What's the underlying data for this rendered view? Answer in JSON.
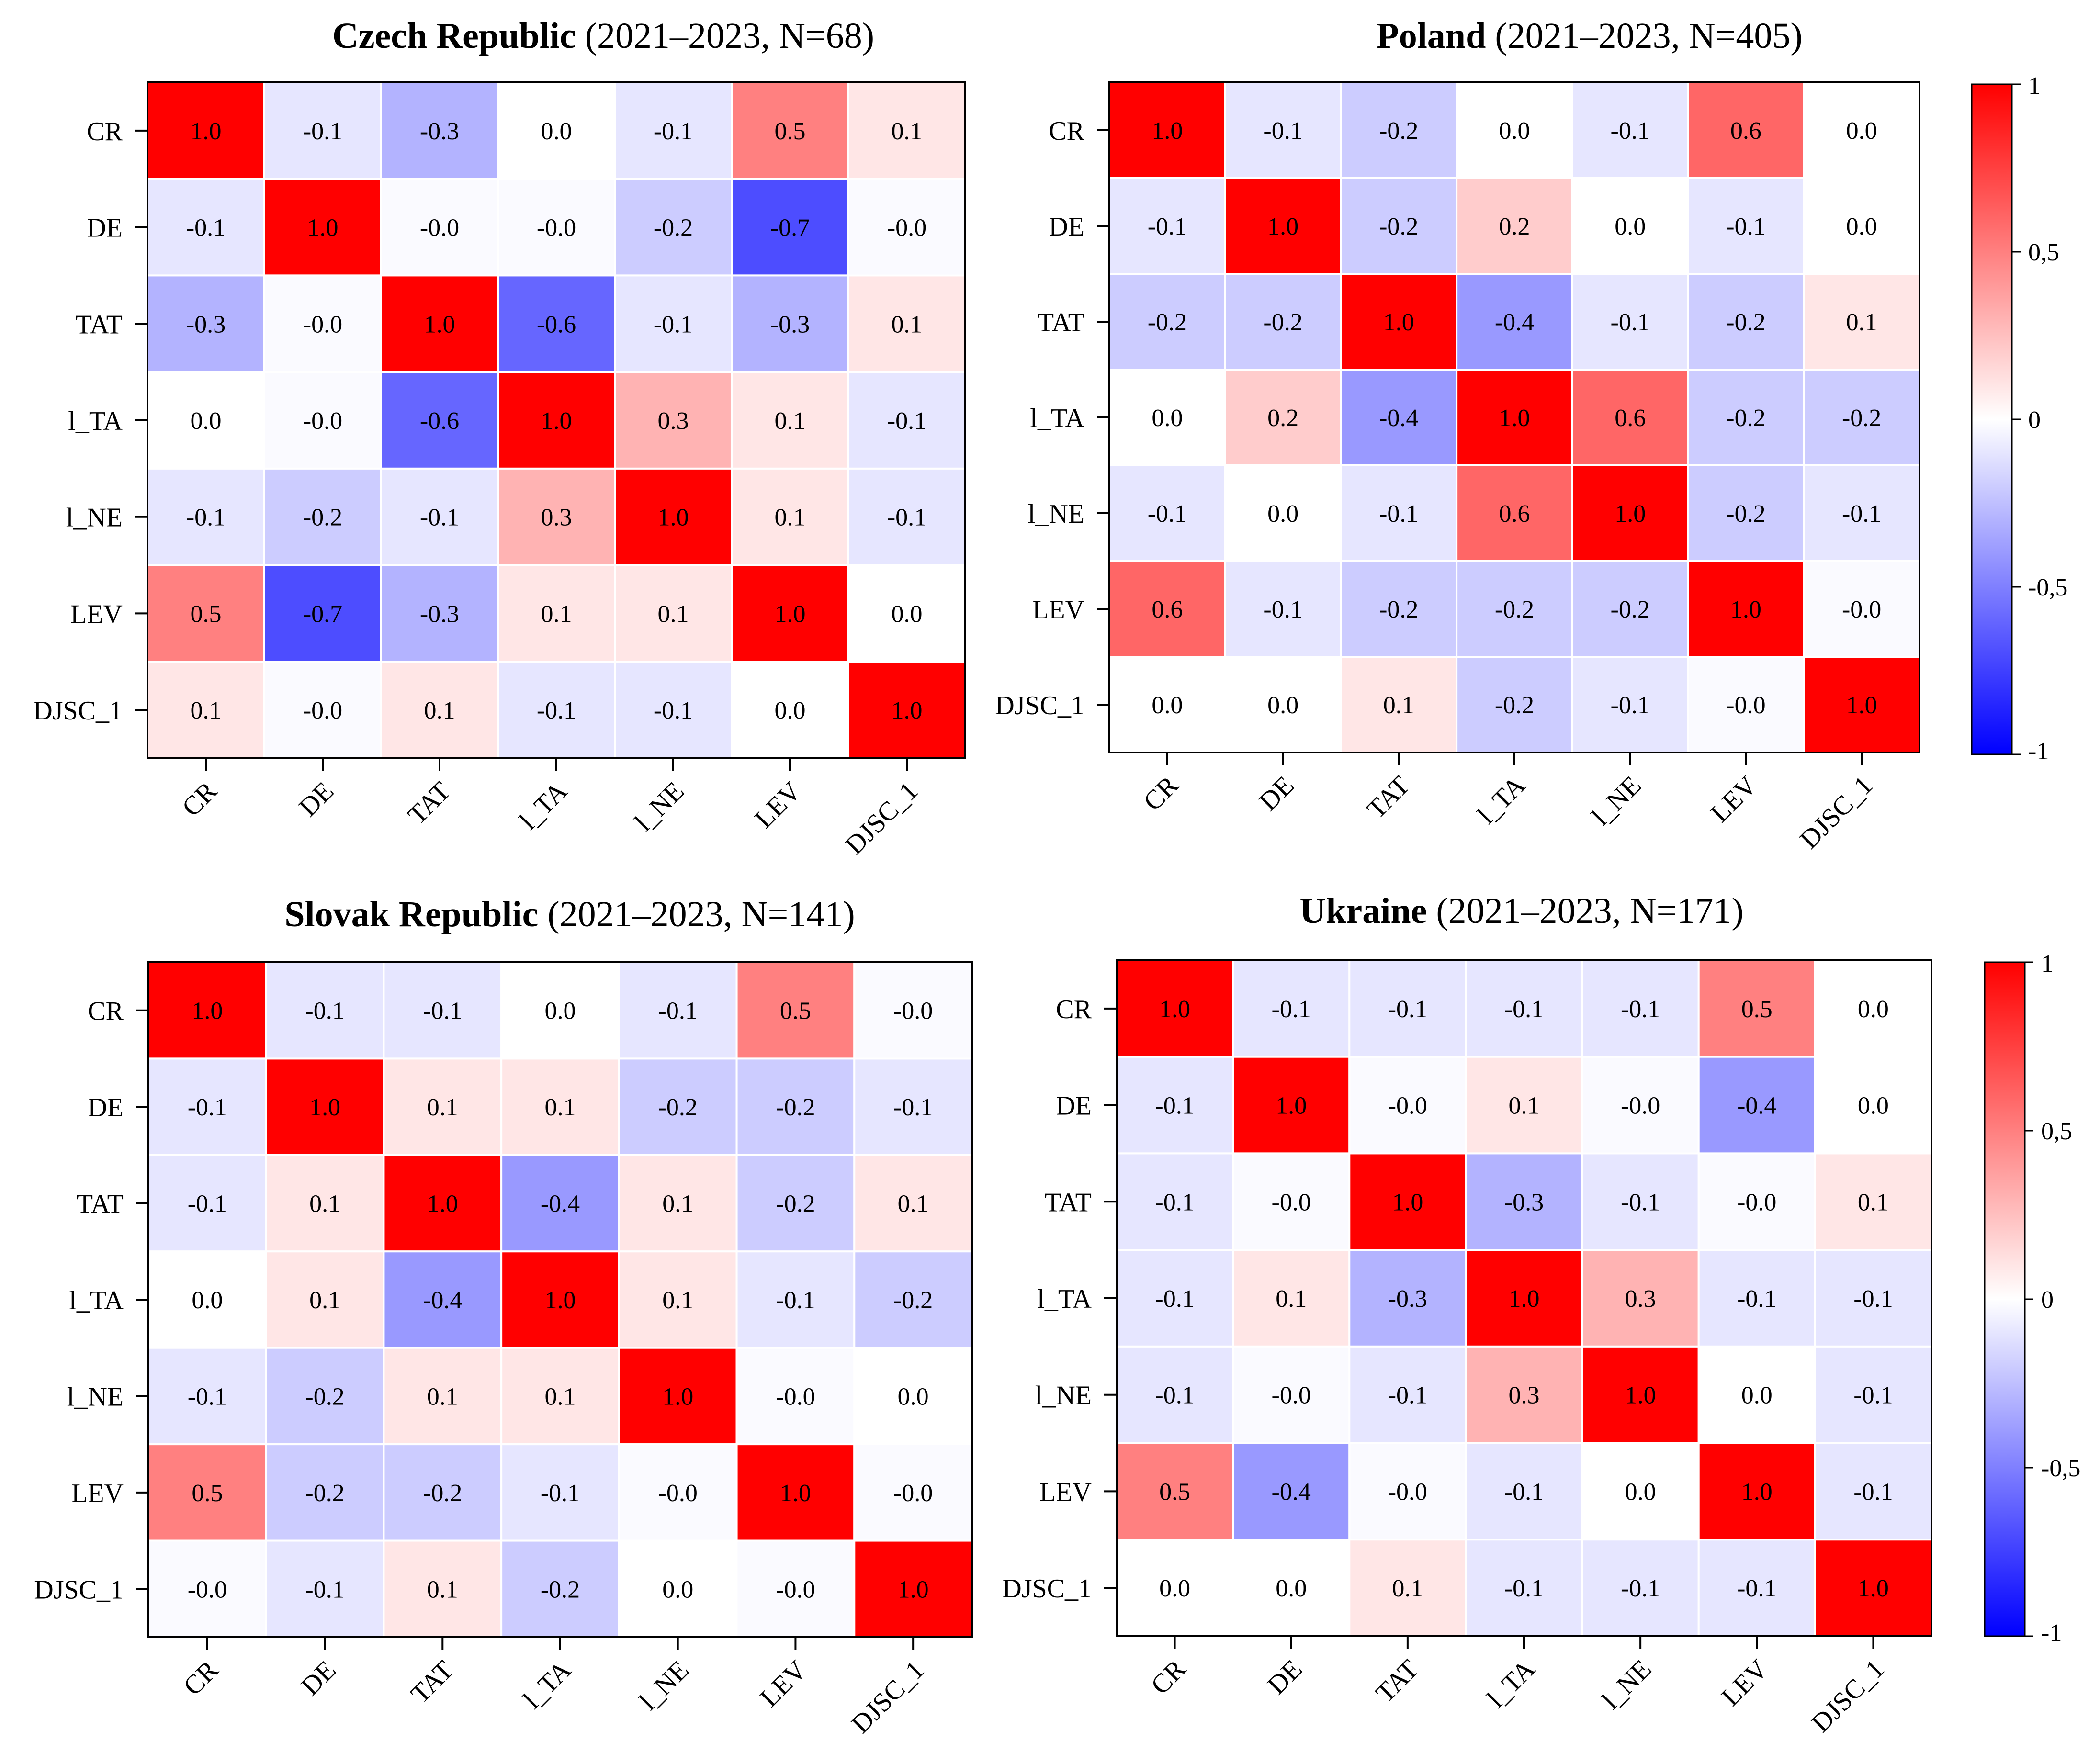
{
  "chart_data": [
    {
      "type": "heatmap",
      "title_country": "Czech Republic",
      "title_suffix": " (2021–2023, N=68)",
      "row_labels": [
        "CR",
        "DE",
        "TAT",
        "l_TA",
        "l_NE",
        "LEV",
        "DJSC_1"
      ],
      "col_labels": [
        "CR",
        "DE",
        "TAT",
        "l_TA",
        "l_NE",
        "LEV",
        "DJSC_1"
      ],
      "values": [
        [
          1.0,
          -0.1,
          -0.3,
          0.0,
          -0.1,
          0.5,
          0.1
        ],
        [
          -0.1,
          1.0,
          -0.02,
          -0.02,
          -0.2,
          -0.7,
          -0.02
        ],
        [
          -0.3,
          -0.02,
          1.0,
          -0.6,
          -0.1,
          -0.3,
          0.1
        ],
        [
          0.0,
          -0.02,
          -0.6,
          1.0,
          0.3,
          0.1,
          -0.1
        ],
        [
          -0.1,
          -0.2,
          -0.1,
          0.3,
          1.0,
          0.1,
          -0.1
        ],
        [
          0.5,
          -0.7,
          -0.3,
          0.1,
          0.1,
          1.0,
          0.0
        ],
        [
          0.1,
          -0.02,
          0.1,
          -0.1,
          -0.1,
          0.0,
          1.0
        ]
      ],
      "labels": [
        [
          "1.0",
          "-0.1",
          "-0.3",
          "0.0",
          "-0.1",
          "0.5",
          "0.1"
        ],
        [
          "-0.1",
          "1.0",
          "-0.0",
          "-0.0",
          "-0.2",
          "-0.7",
          "-0.0"
        ],
        [
          "-0.3",
          "-0.0",
          "1.0",
          "-0.6",
          "-0.1",
          "-0.3",
          "0.1"
        ],
        [
          "0.0",
          "-0.0",
          "-0.6",
          "1.0",
          "0.3",
          "0.1",
          "-0.1"
        ],
        [
          "-0.1",
          "-0.2",
          "-0.1",
          "0.3",
          "1.0",
          "0.1",
          "-0.1"
        ],
        [
          "0.5",
          "-0.7",
          "-0.3",
          "0.1",
          "0.1",
          "1.0",
          "0.0"
        ],
        [
          "0.1",
          "-0.0",
          "0.1",
          "-0.1",
          "-0.1",
          "0.0",
          "1.0"
        ]
      ],
      "colorbar": false
    },
    {
      "type": "heatmap",
      "title_country": "Poland",
      "title_suffix": " (2021–2023, N=405)",
      "row_labels": [
        "CR",
        "DE",
        "TAT",
        "l_TA",
        "l_NE",
        "LEV",
        "DJSC_1"
      ],
      "col_labels": [
        "CR",
        "DE",
        "TAT",
        "l_TA",
        "l_NE",
        "LEV",
        "DJSC_1"
      ],
      "values": [
        [
          1.0,
          -0.1,
          -0.2,
          0.0,
          -0.1,
          0.6,
          0.0
        ],
        [
          -0.1,
          1.0,
          -0.2,
          0.2,
          0.0,
          -0.1,
          0.0
        ],
        [
          -0.2,
          -0.2,
          1.0,
          -0.4,
          -0.1,
          -0.2,
          0.1
        ],
        [
          0.0,
          0.2,
          -0.4,
          1.0,
          0.6,
          -0.2,
          -0.2
        ],
        [
          -0.1,
          0.0,
          -0.1,
          0.6,
          1.0,
          -0.2,
          -0.1
        ],
        [
          0.6,
          -0.1,
          -0.2,
          -0.2,
          -0.2,
          1.0,
          -0.02
        ],
        [
          0.0,
          0.0,
          0.1,
          -0.2,
          -0.1,
          -0.02,
          1.0
        ]
      ],
      "labels": [
        [
          "1.0",
          "-0.1",
          "-0.2",
          "0.0",
          "-0.1",
          "0.6",
          "0.0"
        ],
        [
          "-0.1",
          "1.0",
          "-0.2",
          "0.2",
          "0.0",
          "-0.1",
          "0.0"
        ],
        [
          "-0.2",
          "-0.2",
          "1.0",
          "-0.4",
          "-0.1",
          "-0.2",
          "0.1"
        ],
        [
          "0.0",
          "0.2",
          "-0.4",
          "1.0",
          "0.6",
          "-0.2",
          "-0.2"
        ],
        [
          "-0.1",
          "0.0",
          "-0.1",
          "0.6",
          "1.0",
          "-0.2",
          "-0.1"
        ],
        [
          "0.6",
          "-0.1",
          "-0.2",
          "-0.2",
          "-0.2",
          "1.0",
          "-0.0"
        ],
        [
          "0.0",
          "0.0",
          "0.1",
          "-0.2",
          "-0.1",
          "-0.0",
          "1.0"
        ]
      ],
      "colorbar": true
    },
    {
      "type": "heatmap",
      "title_country": "Slovak Republic",
      "title_suffix": " (2021–2023, N=141)",
      "row_labels": [
        "CR",
        "DE",
        "TAT",
        "l_TA",
        "l_NE",
        "LEV",
        "DJSC_1"
      ],
      "col_labels": [
        "CR",
        "DE",
        "TAT",
        "l_TA",
        "l_NE",
        "LEV",
        "DJSC_1"
      ],
      "values": [
        [
          1.0,
          -0.1,
          -0.1,
          0.0,
          -0.1,
          0.5,
          -0.02
        ],
        [
          -0.1,
          1.0,
          0.1,
          0.1,
          -0.2,
          -0.2,
          -0.1
        ],
        [
          -0.1,
          0.1,
          1.0,
          -0.4,
          0.1,
          -0.2,
          0.1
        ],
        [
          0.0,
          0.1,
          -0.4,
          1.0,
          0.1,
          -0.1,
          -0.2
        ],
        [
          -0.1,
          -0.2,
          0.1,
          0.1,
          1.0,
          -0.02,
          0.0
        ],
        [
          0.5,
          -0.2,
          -0.2,
          -0.1,
          -0.02,
          1.0,
          -0.02
        ],
        [
          -0.02,
          -0.1,
          0.1,
          -0.2,
          0.0,
          -0.02,
          1.0
        ]
      ],
      "labels": [
        [
          "1.0",
          "-0.1",
          "-0.1",
          "0.0",
          "-0.1",
          "0.5",
          "-0.0"
        ],
        [
          "-0.1",
          "1.0",
          "0.1",
          "0.1",
          "-0.2",
          "-0.2",
          "-0.1"
        ],
        [
          "-0.1",
          "0.1",
          "1.0",
          "-0.4",
          "0.1",
          "-0.2",
          "0.1"
        ],
        [
          "0.0",
          "0.1",
          "-0.4",
          "1.0",
          "0.1",
          "-0.1",
          "-0.2"
        ],
        [
          "-0.1",
          "-0.2",
          "0.1",
          "0.1",
          "1.0",
          "-0.0",
          "0.0"
        ],
        [
          "0.5",
          "-0.2",
          "-0.2",
          "-0.1",
          "-0.0",
          "1.0",
          "-0.0"
        ],
        [
          "-0.0",
          "-0.1",
          "0.1",
          "-0.2",
          "0.0",
          "-0.0",
          "1.0"
        ]
      ],
      "colorbar": false
    },
    {
      "type": "heatmap",
      "title_country": "Ukraine",
      "title_suffix": " (2021–2023, N=171)",
      "row_labels": [
        "CR",
        "DE",
        "TAT",
        "l_TA",
        "l_NE",
        "LEV",
        "DJSC_1"
      ],
      "col_labels": [
        "CR",
        "DE",
        "TAT",
        "l_TA",
        "l_NE",
        "LEV",
        "DJSC_1"
      ],
      "values": [
        [
          1.0,
          -0.1,
          -0.1,
          -0.1,
          -0.1,
          0.5,
          0.0
        ],
        [
          -0.1,
          1.0,
          -0.02,
          0.1,
          -0.02,
          -0.4,
          0.0
        ],
        [
          -0.1,
          -0.02,
          1.0,
          -0.3,
          -0.1,
          -0.02,
          0.1
        ],
        [
          -0.1,
          0.1,
          -0.3,
          1.0,
          0.3,
          -0.1,
          -0.1
        ],
        [
          -0.1,
          -0.02,
          -0.1,
          0.3,
          1.0,
          0.0,
          -0.1
        ],
        [
          0.5,
          -0.4,
          -0.02,
          -0.1,
          0.0,
          1.0,
          -0.1
        ],
        [
          0.0,
          0.0,
          0.1,
          -0.1,
          -0.1,
          -0.1,
          1.0
        ]
      ],
      "labels": [
        [
          "1.0",
          "-0.1",
          "-0.1",
          "-0.1",
          "-0.1",
          "0.5",
          "0.0"
        ],
        [
          "-0.1",
          "1.0",
          "-0.0",
          "0.1",
          "-0.0",
          "-0.4",
          "0.0"
        ],
        [
          "-0.1",
          "-0.0",
          "1.0",
          "-0.3",
          "-0.1",
          "-0.0",
          "0.1"
        ],
        [
          "-0.1",
          "0.1",
          "-0.3",
          "1.0",
          "0.3",
          "-0.1",
          "-0.1"
        ],
        [
          "-0.1",
          "-0.0",
          "-0.1",
          "0.3",
          "1.0",
          "0.0",
          "-0.1"
        ],
        [
          "0.5",
          "-0.4",
          "-0.0",
          "-0.1",
          "0.0",
          "1.0",
          "-0.1"
        ],
        [
          "0.0",
          "0.0",
          "0.1",
          "-0.1",
          "-0.1",
          "-0.1",
          "1.0"
        ]
      ],
      "colorbar": true
    }
  ],
  "colorbar": {
    "range": [
      -1,
      1
    ],
    "ticks": [
      1,
      0.5,
      0,
      -0.5,
      -1
    ],
    "tick_labels": [
      "1",
      "0,5",
      "0",
      "-0,5",
      "-1"
    ],
    "colors": {
      "positive": "#ff0000",
      "zero": "#ffffff",
      "negative": "#0000ff"
    }
  }
}
